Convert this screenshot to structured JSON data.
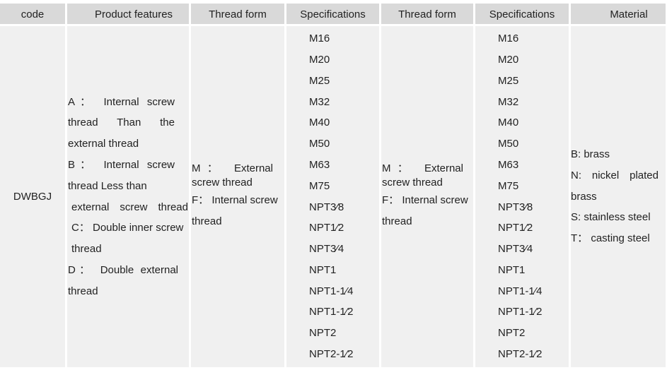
{
  "headers": [
    "code",
    "Product features",
    "Thread form",
    "Specifications",
    "Thread form",
    "Specifications",
    "Material"
  ],
  "row": {
    "code": "DWBGJ",
    "product_features": [
      "A： Internal screw",
      "thread Than the",
      "external thread",
      "B： Internal screw",
      "thread Less than",
      "external screw thread",
      "C： Double inner screw",
      "thread",
      "D： Double external",
      "thread"
    ],
    "thread_form": [
      "M： External",
      "screw thread",
      "F： Internal screw",
      "thread"
    ],
    "specifications": [
      "M16",
      "M20",
      "M25",
      "M32",
      "M40",
      "M50",
      "M63",
      "M75",
      "NPT3⁄8",
      "NPT1⁄2",
      "NPT3⁄4",
      "NPT1",
      "NPT1-1⁄4",
      "NPT1-1⁄2",
      "NPT2",
      "NPT2-1⁄2"
    ],
    "material": [
      "B: brass",
      "N: nickel plated",
      "brass",
      "S: stainless steel",
      "T： casting steel"
    ]
  }
}
